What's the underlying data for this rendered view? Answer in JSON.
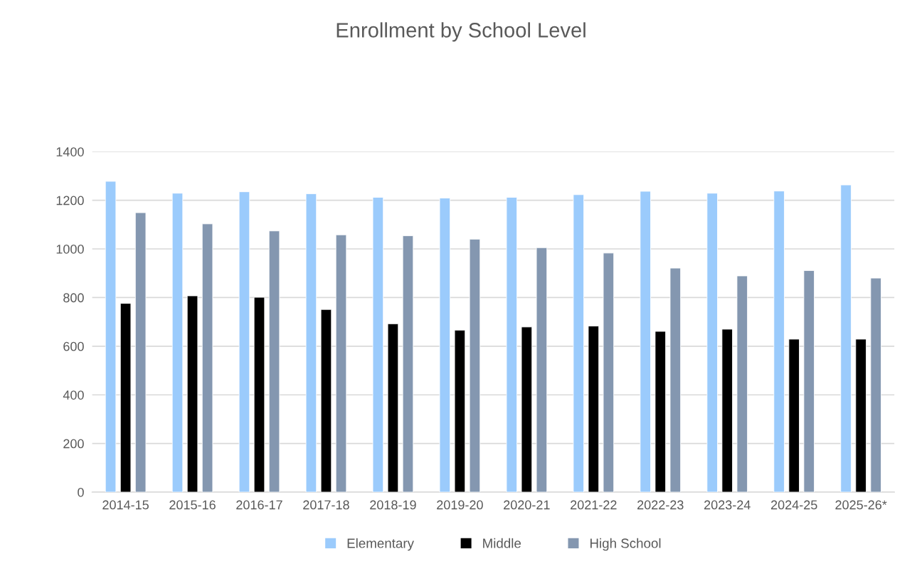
{
  "chart_data": {
    "type": "bar",
    "title": "Enrollment by School Level",
    "categories": [
      "2014-15",
      "2015-16",
      "2016-17",
      "2017-18",
      "2018-19",
      "2019-20",
      "2020-21",
      "2021-22",
      "2022-23",
      "2023-24",
      "2024-25",
      "2025-26*"
    ],
    "series": [
      {
        "name": "Elementary",
        "color": "#9bcbfc",
        "values": [
          1278,
          1229,
          1235,
          1227,
          1212,
          1209,
          1212,
          1223,
          1237,
          1229,
          1238,
          1263
        ]
      },
      {
        "name": "Middle",
        "color": "#000000",
        "values": [
          776,
          807,
          801,
          751,
          692,
          666,
          679,
          683,
          661,
          670,
          629,
          629
        ]
      },
      {
        "name": "High School",
        "color": "#8497b0",
        "values": [
          1149,
          1103,
          1074,
          1058,
          1054,
          1040,
          1005,
          983,
          921,
          889,
          911,
          880
        ]
      }
    ],
    "ylim": [
      0,
      1400
    ],
    "yticks": [
      0,
      200,
      400,
      600,
      800,
      1000,
      1200,
      1400
    ],
    "grid": "y",
    "legend": "bottom"
  }
}
